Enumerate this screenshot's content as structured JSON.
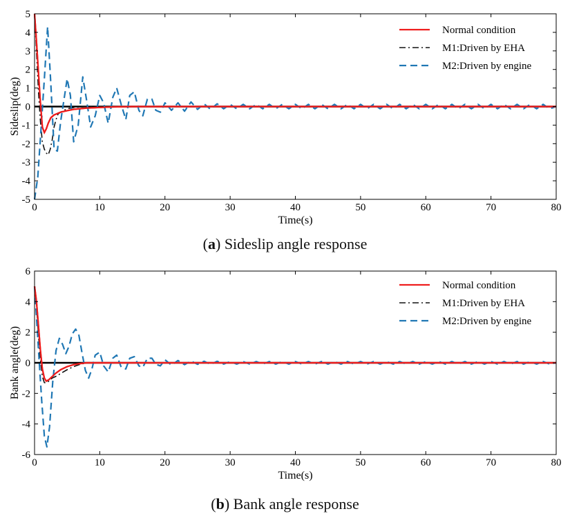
{
  "figure": {
    "caption_a_label": "a",
    "caption_a_text": "Sideslip angle response",
    "caption_b_label": "b",
    "caption_b_text": "Bank angle response"
  },
  "colors": {
    "normal": "#ee1c1c",
    "eha": "#111111",
    "engine": "#1f77b4",
    "zero": "#000000"
  },
  "chart_data": [
    {
      "type": "line",
      "panel": "a",
      "xlabel": "Time(s)",
      "ylabel": "Sideslip(deg)",
      "xlim": [
        0,
        80
      ],
      "ylim": [
        -5,
        5
      ],
      "xticks": [
        0,
        10,
        20,
        30,
        40,
        50,
        60,
        70,
        80
      ],
      "yticks": [
        -5,
        -4,
        -3,
        -2,
        -1,
        0,
        1,
        2,
        3,
        4,
        5
      ],
      "legend_position": "top-right",
      "series": [
        {
          "name": "Normal condition",
          "style": "solid",
          "x": [
            0,
            0.3,
            0.6,
            0.9,
            1.2,
            1.5,
            1.8,
            2.1,
            2.5,
            3,
            4,
            5,
            6,
            8,
            10,
            12,
            15,
            20,
            30,
            40,
            50,
            60,
            70,
            80
          ],
          "y": [
            5,
            3.5,
            1.8,
            0.2,
            -1.1,
            -1.4,
            -1.2,
            -0.9,
            -0.6,
            -0.45,
            -0.3,
            -0.22,
            -0.15,
            -0.08,
            -0.05,
            -0.02,
            0,
            0,
            0,
            0,
            0,
            0,
            0,
            0
          ]
        },
        {
          "name": "M1:Driven by EHA",
          "style": "dashdot",
          "x": [
            0,
            0.3,
            0.6,
            0.9,
            1.2,
            1.5,
            1.8,
            2.1,
            2.4,
            2.7,
            3.0,
            3.3,
            3.6,
            4,
            4.5,
            5,
            6,
            8,
            10,
            15,
            20,
            30,
            40,
            50,
            60,
            70,
            80
          ],
          "y": [
            5,
            3.0,
            0.8,
            -0.8,
            -1.9,
            -2.3,
            -2.5,
            -2.6,
            -2.3,
            -1.8,
            -1.1,
            -0.7,
            -0.4,
            -0.3,
            -0.2,
            -0.12,
            -0.05,
            0,
            0,
            0,
            0,
            0,
            0,
            0,
            0,
            0,
            0
          ]
        },
        {
          "name": "M2:Driven by engine",
          "style": "dashed",
          "x": [
            0,
            0.5,
            1.0,
            1.5,
            2.0,
            2.5,
            3.0,
            3.5,
            4.0,
            5.0,
            5.5,
            6.0,
            6.7,
            7.4,
            8.0,
            8.6,
            9.3,
            10.0,
            10.6,
            11.3,
            12.0,
            12.6,
            13.3,
            14.0,
            14.6,
            15.3,
            16.0,
            16.6,
            17.3,
            18.0,
            18.6,
            19.3,
            20.0,
            21.0,
            22.0,
            23.0,
            24.0,
            25.0,
            26.0,
            27.0,
            28.0,
            29.0,
            30.0,
            31.0,
            32.0,
            33.0,
            34.0,
            35.0,
            36.0,
            37.0,
            38.0,
            39.0,
            40.0,
            41.0,
            42.0,
            43.0,
            44.0,
            45.0,
            46.0,
            47.0,
            48.0,
            49.0,
            50.0,
            51.0,
            52.0,
            53.0,
            54.0,
            55.0,
            56.0,
            57.0,
            58.0,
            59.0,
            60.0,
            61.0,
            62.0,
            63.0,
            64.0,
            65.0,
            66.0,
            67.0,
            68.0,
            69.0,
            70.0,
            71.0,
            72.0,
            73.0,
            74.0,
            75.0,
            76.0,
            77.0,
            78.0,
            79.0,
            80.0
          ],
          "y": [
            -5,
            -3.8,
            -1.2,
            1.5,
            4.3,
            1.2,
            -2.3,
            -2.4,
            -0.8,
            1.5,
            0.6,
            -1.9,
            -1.0,
            1.6,
            0.3,
            -1.1,
            -0.5,
            0.6,
            0.2,
            -0.9,
            0.5,
            1.0,
            0.1,
            -0.7,
            0.6,
            0.8,
            -0.2,
            -0.5,
            0.4,
            0.4,
            -0.2,
            -0.3,
            0.2,
            -0.2,
            0.2,
            -0.25,
            0.25,
            -0.15,
            0.15,
            -0.15,
            0.15,
            -0.12,
            0.12,
            -0.12,
            0.12,
            -0.12,
            0.12,
            -0.12,
            0.12,
            -0.12,
            0.12,
            -0.12,
            0.12,
            -0.12,
            0.12,
            -0.12,
            0.12,
            -0.12,
            0.12,
            -0.12,
            0.12,
            -0.12,
            0.12,
            -0.12,
            0.12,
            -0.12,
            0.12,
            -0.12,
            0.12,
            -0.12,
            0.12,
            -0.12,
            0.12,
            -0.12,
            0.12,
            -0.12,
            0.12,
            -0.12,
            0.12,
            -0.12,
            0.12,
            -0.12,
            0.12,
            -0.12,
            0.12,
            -0.12,
            0.12,
            -0.12,
            0.12,
            -0.12,
            0.12,
            -0.12,
            0.0
          ]
        }
      ]
    },
    {
      "type": "line",
      "panel": "b",
      "xlabel": "Time(s)",
      "ylabel": "Bank angle(deg)",
      "xlim": [
        0,
        80
      ],
      "ylim": [
        -6,
        6
      ],
      "xticks": [
        0,
        10,
        20,
        30,
        40,
        50,
        60,
        70,
        80
      ],
      "yticks": [
        -6,
        -4,
        -2,
        0,
        2,
        4,
        6
      ],
      "legend_position": "top-right",
      "series": [
        {
          "name": "Normal condition",
          "style": "solid",
          "x": [
            0,
            0.3,
            0.6,
            0.9,
            1.2,
            1.5,
            1.8,
            2.2,
            2.7,
            3.2,
            4,
            5,
            6,
            7,
            8,
            10,
            15,
            20,
            30,
            40,
            50,
            60,
            70,
            80
          ],
          "y": [
            5,
            4.0,
            2.4,
            0.8,
            -0.4,
            -1.0,
            -1.2,
            -1.1,
            -0.9,
            -0.7,
            -0.45,
            -0.25,
            -0.12,
            -0.05,
            0,
            0,
            0,
            0,
            0,
            0,
            0,
            0,
            0,
            0
          ]
        },
        {
          "name": "M1:Driven by EHA",
          "style": "dashdot",
          "x": [
            0,
            0.3,
            0.6,
            0.9,
            1.2,
            1.5,
            1.8,
            2.2,
            2.7,
            3.2,
            4,
            5,
            6,
            7,
            8,
            10,
            15,
            20,
            30,
            40,
            50,
            60,
            70,
            80
          ],
          "y": [
            5,
            3.8,
            1.8,
            0.2,
            -0.9,
            -1.3,
            -1.3,
            -1.2,
            -1.0,
            -0.9,
            -0.7,
            -0.45,
            -0.25,
            -0.1,
            0,
            0,
            0,
            0,
            0,
            0,
            0,
            0,
            0,
            0
          ]
        },
        {
          "name": "M2:Driven by engine",
          "style": "dashed",
          "x": [
            0,
            0.3,
            0.7,
            1.1,
            1.5,
            1.9,
            2.3,
            2.8,
            3.3,
            3.8,
            4.3,
            4.8,
            5.3,
            5.8,
            6.3,
            6.8,
            7.3,
            7.8,
            8.3,
            8.8,
            9.3,
            10.0,
            10.6,
            11.3,
            12.0,
            12.6,
            13.3,
            14.0,
            14.6,
            15.3,
            16.0,
            16.6,
            17.3,
            18.0,
            18.6,
            19.3,
            20.0,
            21.0,
            22.0,
            23.0,
            24.0,
            25.0,
            26.0,
            27.0,
            28.0,
            29.0,
            30.0,
            31.0,
            32.0,
            33.0,
            34.0,
            35.0,
            36.0,
            37.0,
            38.0,
            39.0,
            40.0,
            41.0,
            42.0,
            43.0,
            44.0,
            45.0,
            46.0,
            47.0,
            48.0,
            49.0,
            50.0,
            51.0,
            52.0,
            53.0,
            54.0,
            55.0,
            56.0,
            57.0,
            58.0,
            59.0,
            60.0,
            61.0,
            62.0,
            63.0,
            64.0,
            65.0,
            66.0,
            67.0,
            68.0,
            69.0,
            70.0,
            71.0,
            72.0,
            73.0,
            74.0,
            75.0,
            76.0,
            77.0,
            78.0,
            79.0,
            80.0
          ],
          "y": [
            5,
            3.0,
            0.2,
            -2.5,
            -4.8,
            -5.5,
            -4.2,
            -1.2,
            0.8,
            1.6,
            1.2,
            0.6,
            1.1,
            1.9,
            2.2,
            1.8,
            0.6,
            -0.5,
            -1.0,
            -0.4,
            0.5,
            0.7,
            -0.2,
            -0.6,
            0.3,
            0.5,
            -0.3,
            -0.4,
            0.3,
            0.4,
            -0.2,
            -0.3,
            0.3,
            0.3,
            -0.1,
            -0.2,
            0.2,
            -0.15,
            0.15,
            -0.12,
            0.12,
            -0.1,
            0.1,
            -0.1,
            0.1,
            -0.08,
            0.08,
            -0.08,
            0.08,
            -0.08,
            0.08,
            -0.08,
            0.08,
            -0.08,
            0.08,
            -0.08,
            0.08,
            -0.08,
            0.08,
            -0.08,
            0.08,
            -0.08,
            0.08,
            -0.08,
            0.08,
            -0.08,
            0.08,
            -0.08,
            0.08,
            -0.08,
            0.08,
            -0.08,
            0.08,
            -0.08,
            0.08,
            -0.08,
            0.08,
            -0.08,
            0.08,
            -0.08,
            0.08,
            -0.08,
            0.08,
            -0.08,
            0.08,
            -0.08,
            0.08,
            -0.08,
            0.08,
            -0.08,
            0.08,
            -0.08,
            0.08,
            -0.08,
            0.08,
            -0.08,
            0.0
          ]
        }
      ]
    }
  ]
}
